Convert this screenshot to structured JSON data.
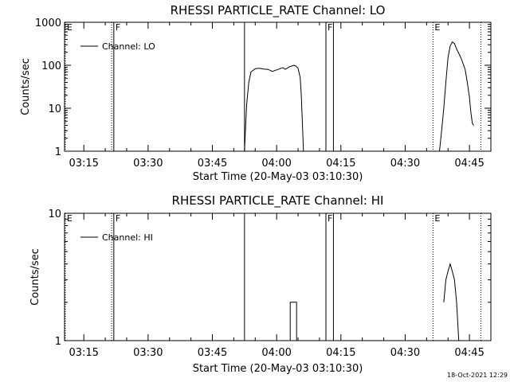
{
  "chart_data": [
    {
      "type": "line",
      "title": "RHESSI PARTICLE_RATE Channel: LO",
      "xlabel": "Start Time (20-May-03 03:10:30)",
      "ylabel": "Counts/sec",
      "y_scale": "log",
      "ylim": [
        1,
        1000
      ],
      "y_ticks": [
        1,
        10,
        100,
        1000
      ],
      "y_tick_labels": [
        "1",
        "10",
        "100",
        "1000"
      ],
      "xlim": [
        "03:10:30",
        "04:50:00"
      ],
      "x_ticks": [
        "03:15",
        "03:30",
        "03:45",
        "04:00",
        "04:15",
        "04:30",
        "04:45"
      ],
      "legend": {
        "placement": "top-left",
        "label": "Channel: LO"
      },
      "series": [
        {
          "name": "Channel: LO",
          "segments": [
            [
              [
                "03:52:30",
                1
              ],
              [
                "03:53:00",
                12
              ],
              [
                "03:53:30",
                40
              ],
              [
                "03:54:00",
                70
              ],
              [
                "03:55:00",
                83
              ],
              [
                "03:56:00",
                85
              ],
              [
                "03:57:00",
                82
              ],
              [
                "03:58:00",
                80
              ],
              [
                "03:59:00",
                72
              ],
              [
                "04:00:00",
                78
              ],
              [
                "04:01:00",
                85
              ],
              [
                "04:01:30",
                88
              ],
              [
                "04:02:00",
                80
              ],
              [
                "04:03:00",
                92
              ],
              [
                "04:04:00",
                100
              ],
              [
                "04:04:30",
                96
              ],
              [
                "04:05:00",
                85
              ],
              [
                "04:05:30",
                52
              ],
              [
                "04:05:45",
                20
              ],
              [
                "04:06:00",
                5
              ],
              [
                "04:06:15",
                1
              ]
            ],
            [
              [
                "04:38:00",
                1
              ],
              [
                "04:38:30",
                3
              ],
              [
                "04:39:00",
                10
              ],
              [
                "04:39:30",
                40
              ],
              [
                "04:40:00",
                150
              ],
              [
                "04:40:30",
                280
              ],
              [
                "04:41:00",
                350
              ],
              [
                "04:41:30",
                320
              ],
              [
                "04:42:00",
                240
              ],
              [
                "04:43:00",
                150
              ],
              [
                "04:44:00",
                80
              ],
              [
                "04:44:30",
                40
              ],
              [
                "04:45:00",
                18
              ],
              [
                "04:45:20",
                8
              ],
              [
                "04:45:40",
                4.5
              ],
              [
                "04:46:00",
                4
              ]
            ]
          ]
        }
      ],
      "markers": [
        {
          "time": "03:10:40",
          "style": "dotted",
          "label": "E"
        },
        {
          "time": "03:21:30",
          "style": "dotted",
          "label": ""
        },
        {
          "time": "03:22:00",
          "style": "solid",
          "label": "F"
        },
        {
          "time": "03:52:30",
          "style": "solid",
          "label": ""
        },
        {
          "time": "04:11:30",
          "style": "solid",
          "label": "F"
        },
        {
          "time": "04:13:15",
          "style": "solid",
          "label": ""
        },
        {
          "time": "04:36:30",
          "style": "dotted",
          "label": "E"
        },
        {
          "time": "04:47:40",
          "style": "dotted",
          "label": ""
        }
      ]
    },
    {
      "type": "line",
      "title": "RHESSI PARTICLE_RATE Channel: HI",
      "xlabel": "Start Time (20-May-03 03:10:30)",
      "ylabel": "Counts/sec",
      "y_scale": "log",
      "ylim": [
        1,
        10
      ],
      "y_ticks": [
        1,
        10
      ],
      "y_tick_labels": [
        "1",
        "10"
      ],
      "xlim": [
        "03:10:30",
        "04:50:00"
      ],
      "x_ticks": [
        "03:15",
        "03:30",
        "03:45",
        "04:00",
        "04:15",
        "04:30",
        "04:45"
      ],
      "legend": {
        "placement": "top-left",
        "label": "Channel: HI"
      },
      "series": [
        {
          "name": "Channel: HI",
          "segments": [
            [
              [
                "04:03:10",
                1
              ],
              [
                "04:03:10",
                2
              ],
              [
                "04:04:40",
                2
              ],
              [
                "04:04:40",
                1
              ]
            ],
            [
              [
                "04:39:00",
                2
              ],
              [
                "04:39:30",
                3
              ],
              [
                "04:40:00",
                3.5
              ],
              [
                "04:40:30",
                4
              ],
              [
                "04:41:00",
                3.5
              ],
              [
                "04:41:30",
                3
              ],
              [
                "04:42:00",
                2
              ],
              [
                "04:42:30",
                1
              ]
            ]
          ]
        }
      ],
      "markers": [
        {
          "time": "03:10:40",
          "style": "dotted",
          "label": "E"
        },
        {
          "time": "03:21:30",
          "style": "dotted",
          "label": ""
        },
        {
          "time": "03:22:00",
          "style": "solid",
          "label": "F"
        },
        {
          "time": "03:52:30",
          "style": "solid",
          "label": ""
        },
        {
          "time": "04:11:30",
          "style": "solid",
          "label": "F"
        },
        {
          "time": "04:13:15",
          "style": "solid",
          "label": ""
        },
        {
          "time": "04:36:30",
          "style": "dotted",
          "label": "E"
        },
        {
          "time": "04:47:40",
          "style": "dotted",
          "label": ""
        }
      ]
    }
  ],
  "footer": {
    "date_stamp": "18-Oct-2021 12:29"
  }
}
